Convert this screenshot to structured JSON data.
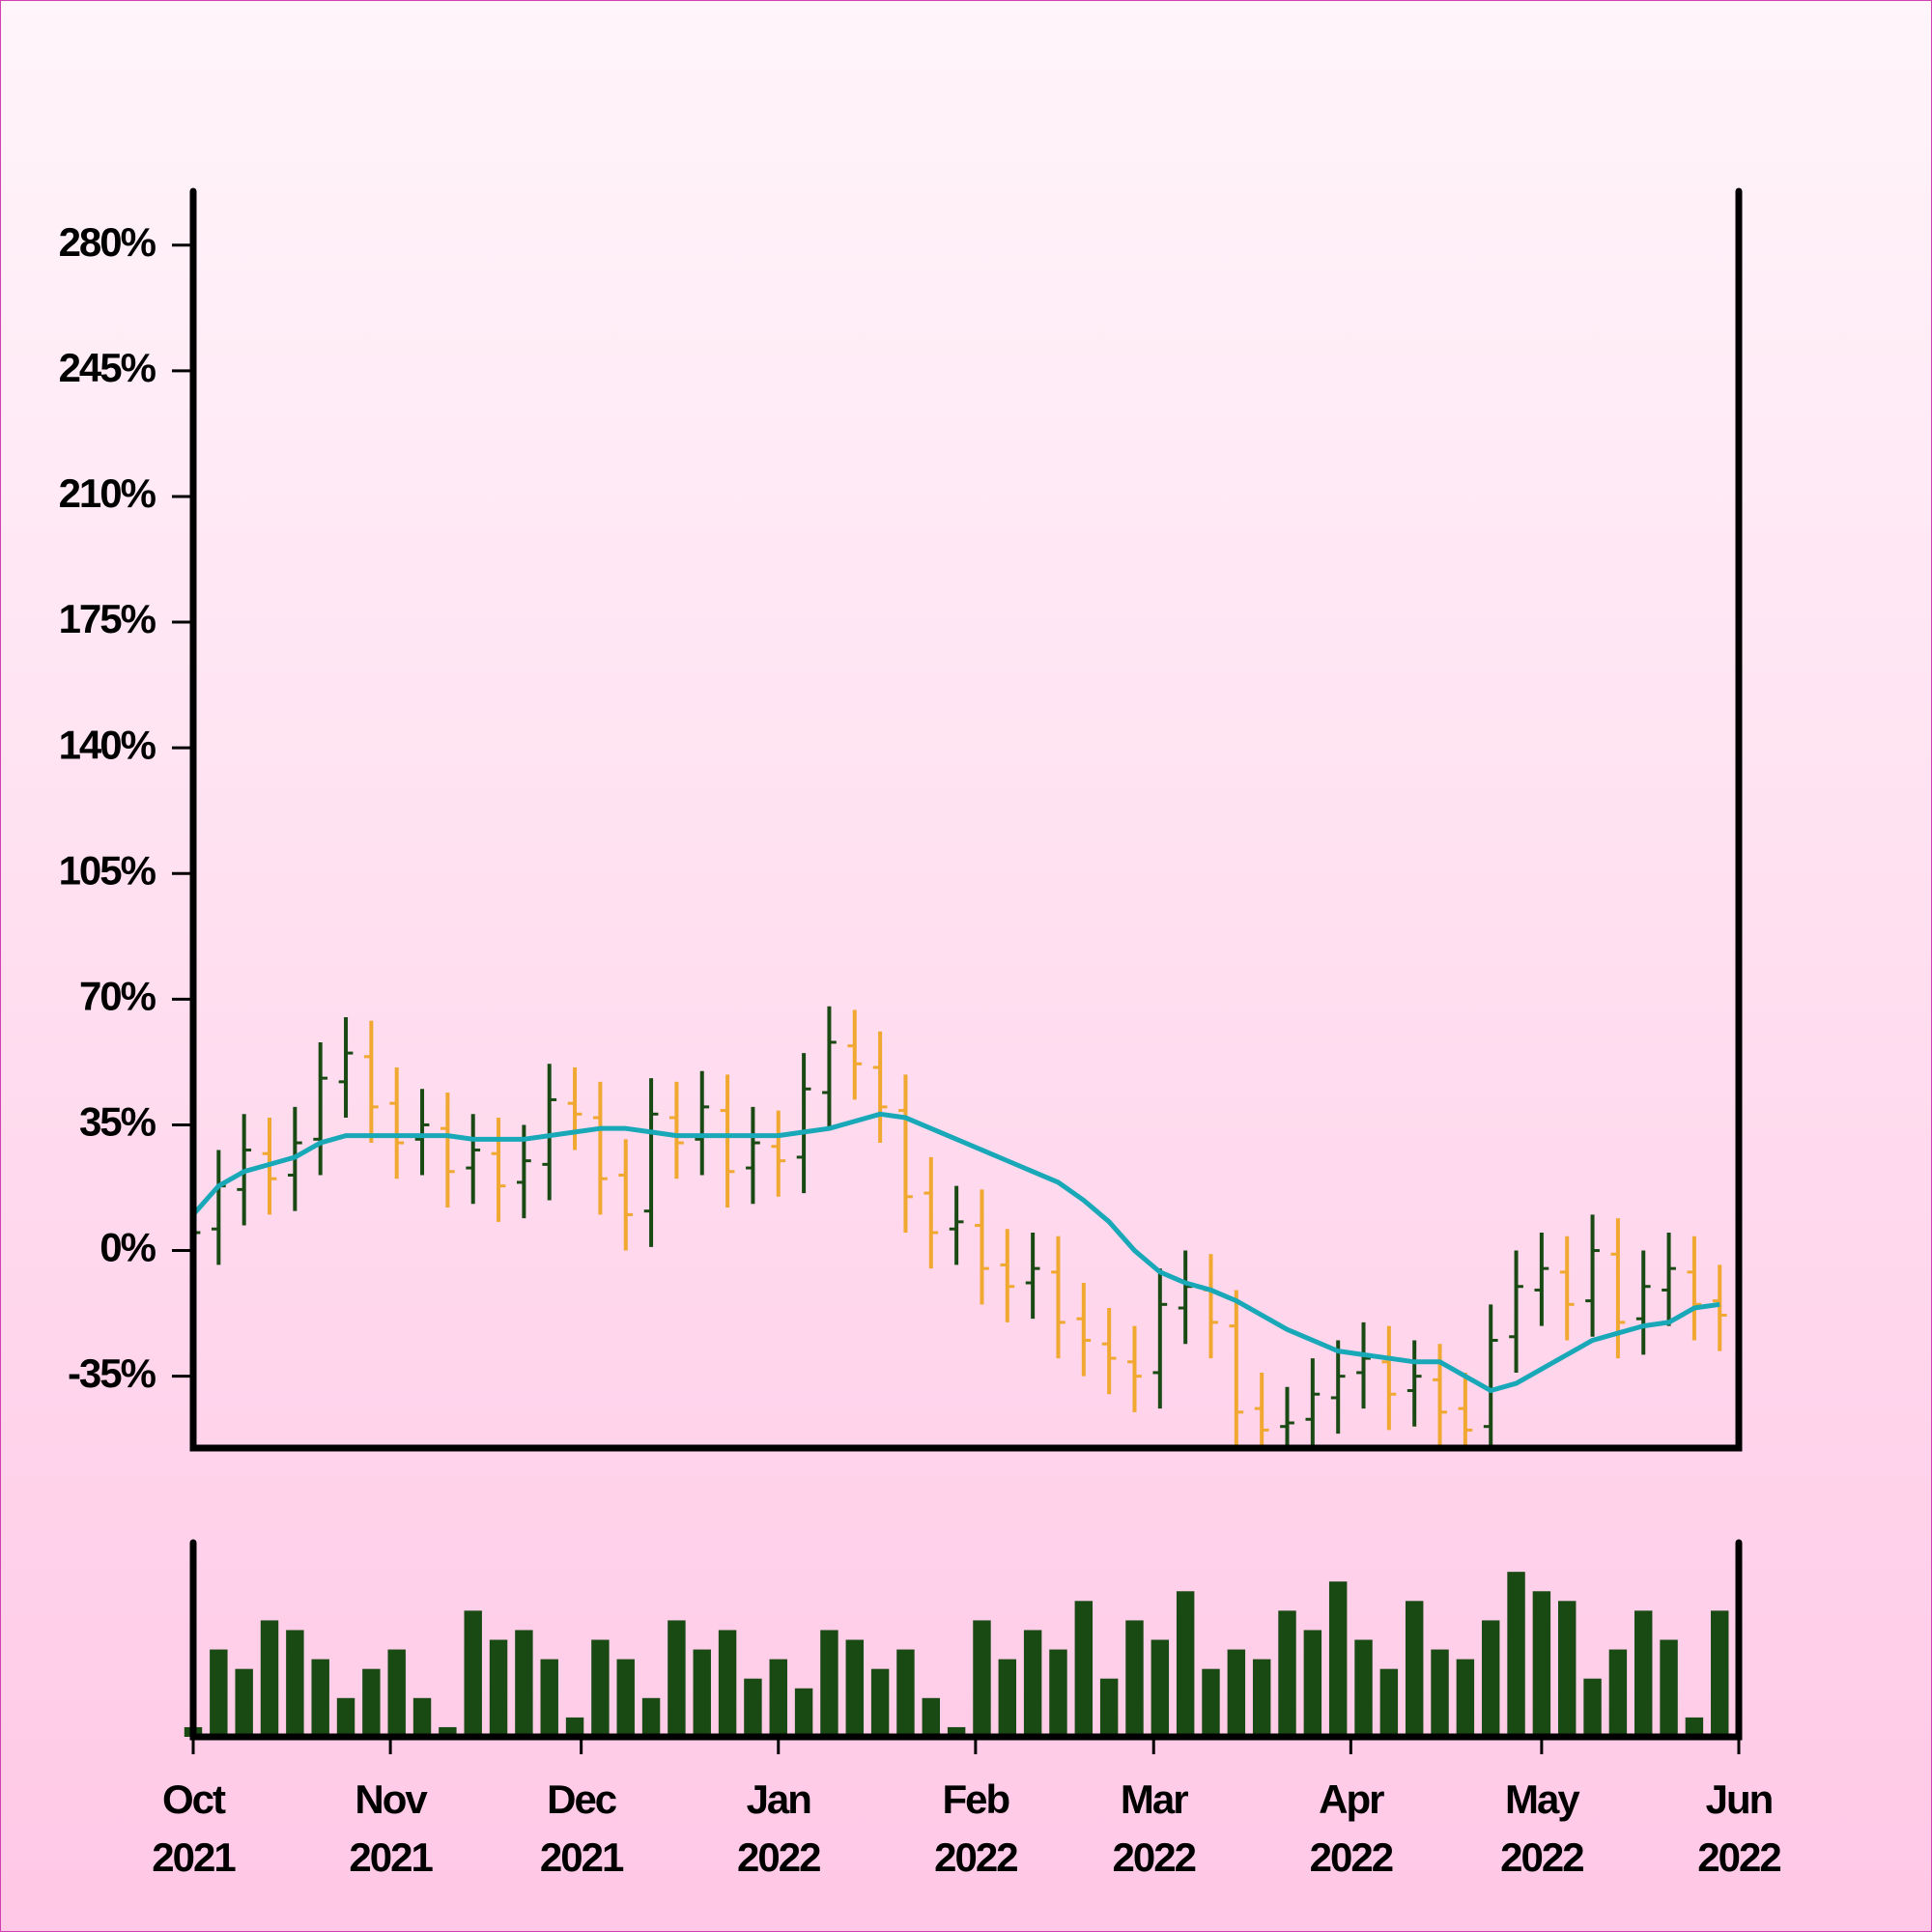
{
  "chart_data": {
    "type": "ohlc",
    "x": [
      "2021-10-01",
      "2021-10-05",
      "2021-10-09",
      "2021-10-13",
      "2021-10-17",
      "2021-10-21",
      "2021-10-25",
      "2021-10-29",
      "2021-11-02",
      "2021-11-06",
      "2021-11-10",
      "2021-11-14",
      "2021-11-18",
      "2021-11-22",
      "2021-11-26",
      "2021-11-30",
      "2021-12-04",
      "2021-12-08",
      "2021-12-12",
      "2021-12-16",
      "2021-12-20",
      "2021-12-24",
      "2021-12-28",
      "2022-01-01",
      "2022-01-05",
      "2022-01-09",
      "2022-01-13",
      "2022-01-17",
      "2022-01-21",
      "2022-01-25",
      "2022-01-29",
      "2022-02-02",
      "2022-02-06",
      "2022-02-10",
      "2022-02-14",
      "2022-02-18",
      "2022-02-22",
      "2022-02-26",
      "2022-03-02",
      "2022-03-06",
      "2022-03-10",
      "2022-03-14",
      "2022-03-18",
      "2022-03-22",
      "2022-03-26",
      "2022-03-30",
      "2022-04-03",
      "2022-04-07",
      "2022-04-11",
      "2022-04-15",
      "2022-04-19",
      "2022-04-23",
      "2022-04-27",
      "2022-05-01",
      "2022-05-05",
      "2022-05-09",
      "2022-05-13",
      "2022-05-17",
      "2022-05-21",
      "2022-05-25",
      "2022-05-29"
    ],
    "open": [
      0,
      6,
      17,
      27,
      21,
      31,
      47,
      54,
      41,
      31,
      34,
      23,
      27,
      19,
      24,
      41,
      37,
      21,
      11,
      37,
      31,
      39,
      23,
      29,
      26,
      44,
      57,
      51,
      39,
      16,
      6,
      7,
      -4,
      -9,
      -6,
      -19,
      -26,
      -31,
      -34,
      -16,
      -11,
      -21,
      -44,
      -49,
      -47,
      -41,
      -34,
      -31,
      -39,
      -36,
      -44,
      -49,
      -24,
      -11,
      -6,
      -14,
      -1,
      -19,
      -11,
      -6,
      -14
    ],
    "high": [
      15,
      28,
      38,
      37,
      40,
      58,
      65,
      64,
      51,
      45,
      44,
      38,
      37,
      35,
      52,
      51,
      47,
      31,
      48,
      47,
      50,
      49,
      40,
      39,
      55,
      68,
      67,
      61,
      49,
      26,
      18,
      17,
      6,
      5,
      4,
      -9,
      -16,
      -21,
      -5,
      0,
      -1,
      -11,
      -34,
      -38,
      -30,
      -25,
      -20,
      -21,
      -25,
      -26,
      -34,
      -15,
      0,
      5,
      4,
      10,
      9,
      0,
      5,
      4,
      -4
    ],
    "low": [
      -10,
      -4,
      7,
      10,
      11,
      21,
      37,
      30,
      20,
      21,
      12,
      13,
      8,
      9,
      14,
      28,
      10,
      0,
      1,
      20,
      21,
      12,
      13,
      15,
      16,
      34,
      42,
      30,
      5,
      -5,
      -4,
      -15,
      -20,
      -19,
      -30,
      -35,
      -40,
      -45,
      -44,
      -26,
      -30,
      -55,
      -60,
      -59,
      -57,
      -51,
      -44,
      -50,
      -49,
      -55,
      -60,
      -59,
      -34,
      -21,
      -25,
      -24,
      -30,
      -29,
      -21,
      -25,
      -28
    ],
    "close": [
      5,
      18,
      28,
      20,
      30,
      48,
      55,
      40,
      30,
      35,
      22,
      28,
      18,
      25,
      42,
      38,
      20,
      10,
      38,
      30,
      40,
      22,
      30,
      25,
      45,
      58,
      52,
      40,
      15,
      5,
      8,
      -5,
      -10,
      -5,
      -20,
      -25,
      -30,
      -35,
      -15,
      -10,
      -20,
      -45,
      -50,
      -48,
      -40,
      -35,
      -30,
      -40,
      -35,
      -45,
      -50,
      -25,
      -10,
      -5,
      -15,
      0,
      -20,
      -10,
      -5,
      -15,
      -18
    ],
    "moving_average": [
      10,
      18,
      22,
      24,
      26,
      30,
      32,
      32,
      32,
      32,
      32,
      31,
      31,
      31,
      32,
      33,
      34,
      34,
      33,
      32,
      32,
      32,
      32,
      32,
      33,
      34,
      36,
      38,
      37,
      34,
      31,
      28,
      25,
      22,
      19,
      14,
      8,
      0,
      -6,
      -9,
      -11,
      -14,
      -18,
      -22,
      -25,
      -28,
      -29,
      -30,
      -31,
      -31,
      -35,
      -39,
      -37,
      -33,
      -29,
      -25,
      -23,
      -21,
      -20,
      -16,
      -15
    ],
    "volume": [
      5,
      45,
      35,
      60,
      55,
      40,
      20,
      35,
      45,
      20,
      5,
      65,
      50,
      55,
      40,
      10,
      50,
      40,
      20,
      60,
      45,
      55,
      30,
      40,
      25,
      55,
      50,
      35,
      45,
      20,
      5,
      60,
      40,
      55,
      45,
      70,
      30,
      60,
      50,
      75,
      35,
      45,
      40,
      65,
      55,
      80,
      50,
      35,
      70,
      45,
      40,
      60,
      85,
      75,
      70,
      30,
      45,
      65,
      50,
      10,
      65
    ],
    "up_color": "#1a4a14",
    "down_color": "#f0a830",
    "ma_color": "#18a8b8",
    "volume_color": "#1a4a14",
    "xlim": [
      "2021-10-01",
      "2022-06-01"
    ],
    "xticks": [
      {
        "value": "2021-10-01",
        "label": "Oct 2021"
      },
      {
        "value": "2021-11-01",
        "label": "Nov 2021"
      },
      {
        "value": "2021-12-01",
        "label": "Dec 2021"
      },
      {
        "value": "2022-01-01",
        "label": "Jan 2022"
      },
      {
        "value": "2022-02-01",
        "label": "Feb 2022"
      },
      {
        "value": "2022-03-01",
        "label": "Mar 2022"
      },
      {
        "value": "2022-04-01",
        "label": "Apr 2022"
      },
      {
        "value": "2022-05-01",
        "label": "May 2022"
      },
      {
        "value": "2022-06-01",
        "label": "Jun 2022"
      }
    ],
    "ylim": [
      -55,
      295
    ],
    "yticks": [
      {
        "value": -35,
        "label": "-35%"
      },
      {
        "value": 0,
        "label": "0%"
      },
      {
        "value": 35,
        "label": "35%"
      },
      {
        "value": 70,
        "label": "70%"
      },
      {
        "value": 105,
        "label": "105%"
      },
      {
        "value": 140,
        "label": "140%"
      },
      {
        "value": 175,
        "label": "175%"
      },
      {
        "value": 210,
        "label": "210%"
      },
      {
        "value": 245,
        "label": "245%"
      },
      {
        "value": 280,
        "label": "280%"
      }
    ],
    "volume_lim": [
      0,
      100
    ]
  }
}
